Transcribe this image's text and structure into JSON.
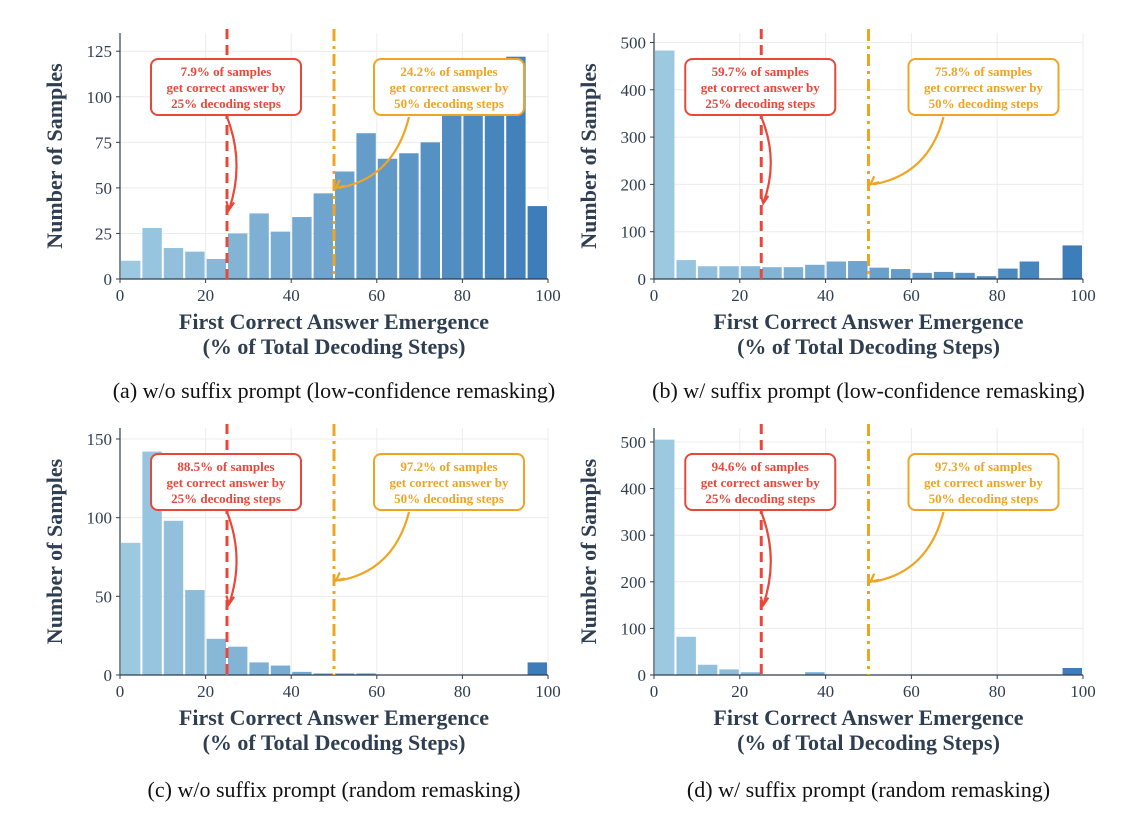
{
  "colors": {
    "red": "#e8483a",
    "orange": "#f0a424",
    "axis": "#2f3e50",
    "bar_light": "#9ecae1",
    "bar_dark": "#3a7bb8"
  },
  "chart_data": [
    {
      "type": "bar",
      "caption": "(a) w/o suffix prompt (low-confidence remasking)",
      "xlabel_line1": "First Correct Answer Emergence",
      "xlabel_line2": "(% of Total Decoding Steps)",
      "ylabel": "Number of Samples",
      "xlim": [
        0,
        100
      ],
      "ylim": [
        0,
        135
      ],
      "xticks": [
        0,
        20,
        40,
        60,
        80,
        100
      ],
      "yticks": [
        0,
        25,
        50,
        75,
        100,
        125
      ],
      "bin_width": 5,
      "bin_starts": [
        0,
        5,
        10,
        15,
        20,
        25,
        30,
        35,
        40,
        45,
        50,
        55,
        60,
        65,
        70,
        75,
        80,
        85,
        90,
        95
      ],
      "values": [
        10,
        28,
        17,
        15,
        11,
        25,
        36,
        26,
        34,
        47,
        59,
        80,
        66,
        69,
        75,
        93,
        108,
        113,
        122,
        40
      ],
      "annotations": [
        {
          "x": 25,
          "style": "dashed",
          "color": "red",
          "lines": [
            "7.9% of samples",
            "get correct answer by",
            "25% decoding steps"
          ],
          "arrow_to_y": 38
        },
        {
          "x": 50,
          "style": "dashdot",
          "color": "orange",
          "lines": [
            "24.2% of samples",
            "get correct answer by",
            "50% decoding steps"
          ],
          "arrow_to_y": 50
        }
      ]
    },
    {
      "type": "bar",
      "caption": "(b) w/ suffix prompt (low-confidence remasking)",
      "xlabel_line1": "First Correct Answer Emergence",
      "xlabel_line2": "(% of Total Decoding Steps)",
      "ylabel": "Number of Samples",
      "xlim": [
        0,
        100
      ],
      "ylim": [
        0,
        520
      ],
      "xticks": [
        0,
        20,
        40,
        60,
        80,
        100
      ],
      "yticks": [
        0,
        100,
        200,
        300,
        400,
        500
      ],
      "bin_width": 5,
      "bin_starts": [
        0,
        5,
        10,
        15,
        20,
        25,
        30,
        35,
        40,
        45,
        50,
        55,
        60,
        65,
        70,
        75,
        80,
        85,
        90,
        95
      ],
      "values": [
        483,
        40,
        27,
        27,
        27,
        25,
        25,
        30,
        37,
        38,
        24,
        21,
        13,
        15,
        13,
        6,
        22,
        37,
        0,
        71
      ],
      "annotations": [
        {
          "x": 25,
          "style": "dashed",
          "color": "red",
          "lines": [
            "59.7% of samples",
            "get correct answer by",
            "25% decoding steps"
          ],
          "arrow_to_y": 160
        },
        {
          "x": 50,
          "style": "dashdot",
          "color": "orange",
          "lines": [
            "75.8% of samples",
            "get correct answer by",
            "50% decoding steps"
          ],
          "arrow_to_y": 200
        }
      ]
    },
    {
      "type": "bar",
      "caption": "(c) w/o suffix prompt (random remasking)",
      "xlabel_line1": "First Correct Answer Emergence",
      "xlabel_line2": "(% of Total Decoding Steps)",
      "ylabel": "Number of Samples",
      "xlim": [
        0,
        100
      ],
      "ylim": [
        0,
        157
      ],
      "xticks": [
        0,
        20,
        40,
        60,
        80,
        100
      ],
      "yticks": [
        0,
        50,
        100,
        150
      ],
      "bin_width": 5,
      "bin_starts": [
        0,
        5,
        10,
        15,
        20,
        25,
        30,
        35,
        40,
        45,
        50,
        55,
        60,
        65,
        70,
        75,
        80,
        85,
        90,
        95
      ],
      "values": [
        84,
        142,
        98,
        54,
        23,
        18,
        8,
        6,
        2,
        1,
        1,
        1,
        0,
        0,
        0,
        0,
        0,
        0,
        0,
        8
      ],
      "annotations": [
        {
          "x": 25,
          "style": "dashed",
          "color": "red",
          "lines": [
            "88.5% of samples",
            "get correct answer by",
            "25% decoding steps"
          ],
          "arrow_to_y": 45
        },
        {
          "x": 50,
          "style": "dashdot",
          "color": "orange",
          "lines": [
            "97.2% of samples",
            "get correct answer by",
            "50% decoding steps"
          ],
          "arrow_to_y": 60
        }
      ]
    },
    {
      "type": "bar",
      "caption": "(d) w/ suffix prompt (random remasking)",
      "xlabel_line1": "First Correct Answer Emergence",
      "xlabel_line2": "(% of Total Decoding Steps)",
      "ylabel": "Number of Samples",
      "xlim": [
        0,
        100
      ],
      "ylim": [
        0,
        530
      ],
      "xticks": [
        0,
        20,
        40,
        60,
        80,
        100
      ],
      "yticks": [
        0,
        100,
        200,
        300,
        400,
        500
      ],
      "bin_width": 5,
      "bin_starts": [
        0,
        5,
        10,
        15,
        20,
        25,
        30,
        35,
        40,
        45,
        50,
        55,
        60,
        65,
        70,
        75,
        80,
        85,
        90,
        95
      ],
      "values": [
        505,
        82,
        22,
        12,
        6,
        0,
        0,
        6,
        0,
        0,
        0,
        0,
        0,
        0,
        0,
        0,
        0,
        0,
        0,
        15
      ],
      "annotations": [
        {
          "x": 25,
          "style": "dashed",
          "color": "red",
          "lines": [
            "94.6% of samples",
            "get correct answer by",
            "25% decoding steps"
          ],
          "arrow_to_y": 150
        },
        {
          "x": 50,
          "style": "dashdot",
          "color": "orange",
          "lines": [
            "97.3% of samples",
            "get correct answer by",
            "50% decoding steps"
          ],
          "arrow_to_y": 200
        }
      ]
    }
  ]
}
